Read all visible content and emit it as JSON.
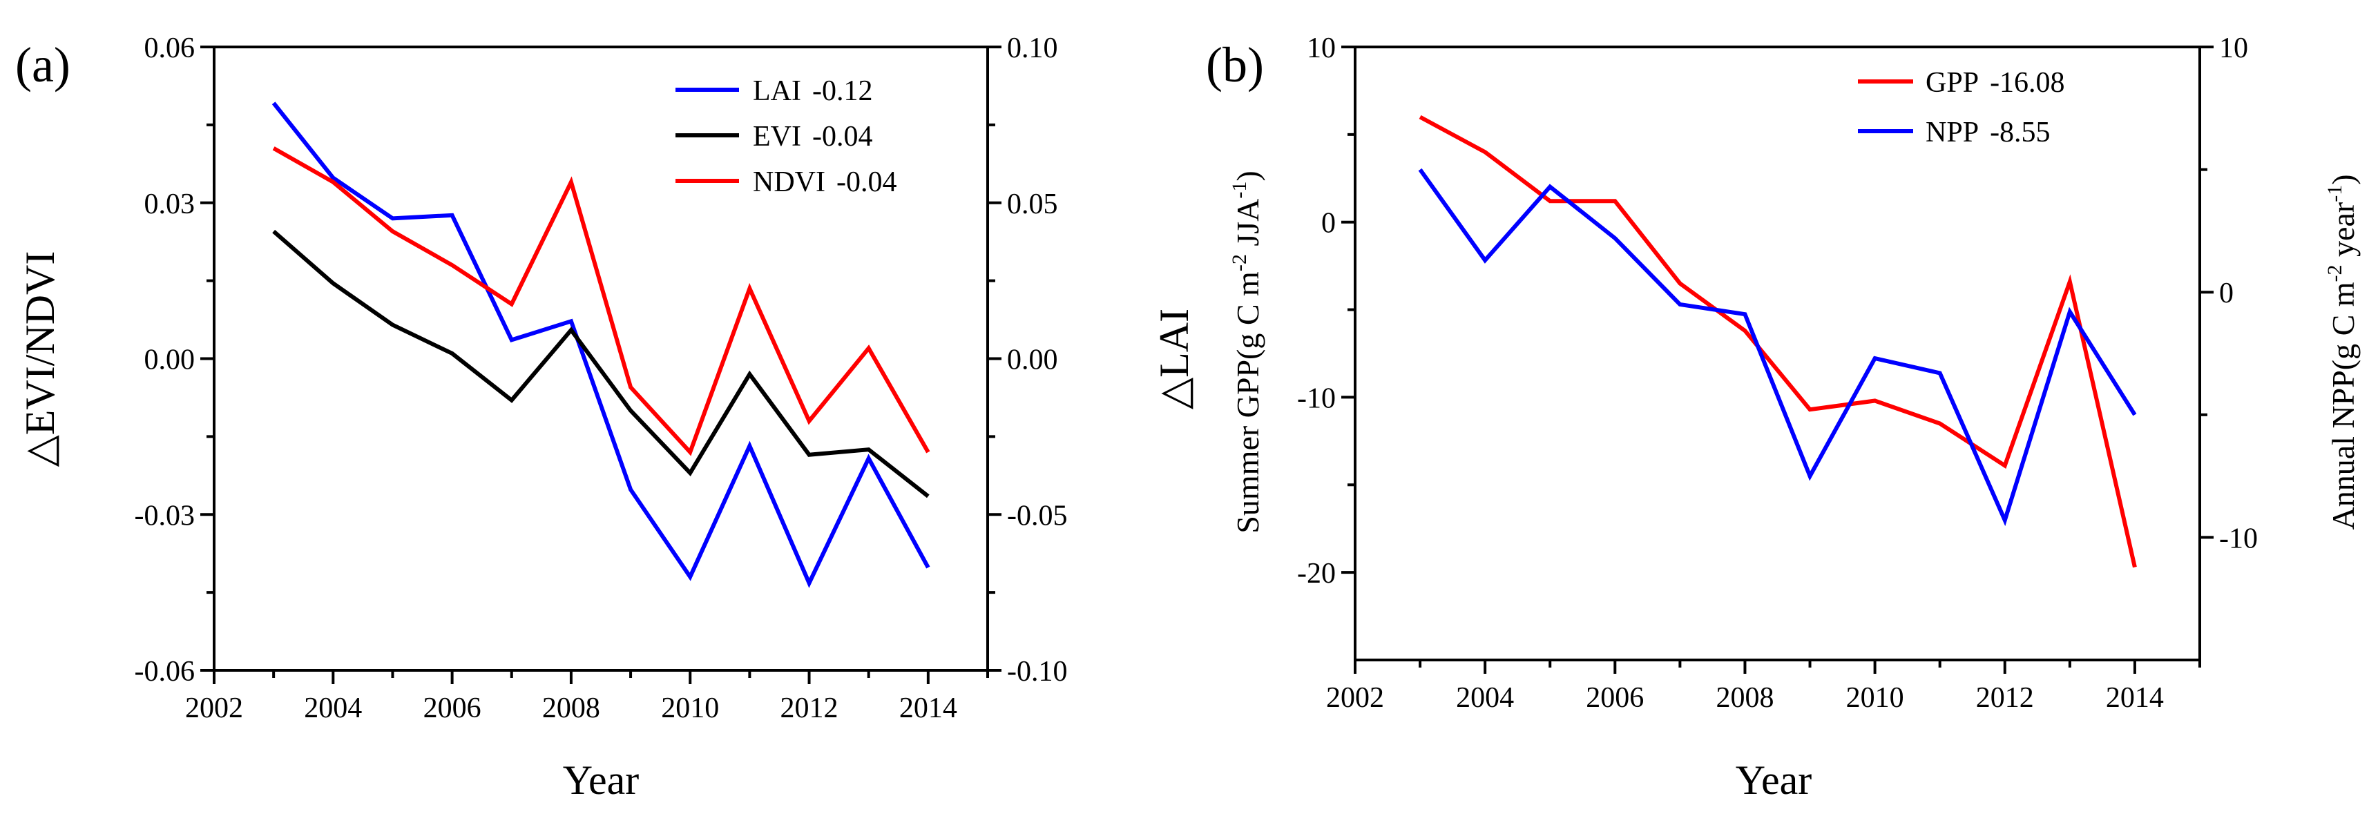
{
  "chart_data": [
    {
      "type": "line",
      "panel_label": "(a)",
      "xlabel": "Year",
      "ylabel": "△EVI/NDVI",
      "y2label": "△LAI",
      "xlim": [
        2002,
        2015
      ],
      "ylim": [
        -0.06,
        0.06
      ],
      "y2lim": [
        -0.1,
        0.1
      ],
      "x_ticks": [
        "2002",
        "2004",
        "2006",
        "2008",
        "2010",
        "2012",
        "2014"
      ],
      "y_ticks": [
        "-0.06",
        "-0.03",
        "0.00",
        "0.03",
        "0.06"
      ],
      "y2_ticks": [
        "-0.10",
        "-0.05",
        "0.00",
        "0.05",
        "0.10"
      ],
      "legend_position": "top-right",
      "x": [
        2003,
        2004,
        2005,
        2006,
        2007,
        2008,
        2009,
        2010,
        2011,
        2012,
        2013,
        2014
      ],
      "series": [
        {
          "name": "LAI",
          "trend": "-0.12",
          "color": "#0000ff",
          "axis": "right",
          "values": [
            0.082,
            0.058,
            0.045,
            0.046,
            0.006,
            0.012,
            -0.042,
            -0.07,
            -0.028,
            -0.072,
            -0.032,
            -0.067
          ]
        },
        {
          "name": "EVI",
          "trend": "-0.04",
          "color": "#000000",
          "axis": "left",
          "values": [
            0.0245,
            0.0145,
            0.0065,
            0.001,
            -0.008,
            0.0055,
            -0.01,
            -0.022,
            -0.003,
            -0.0185,
            -0.0175,
            -0.0265
          ]
        },
        {
          "name": "NDVI",
          "trend": "-0.04",
          "color": "#ff0000",
          "axis": "left",
          "values": [
            0.0405,
            0.034,
            0.0245,
            0.018,
            0.0105,
            0.034,
            -0.0055,
            -0.018,
            0.0135,
            -0.012,
            0.002,
            -0.018
          ]
        }
      ]
    },
    {
      "type": "line",
      "panel_label": "(b)",
      "xlabel": "Year",
      "ylabel": "Summer GPP(g C m",
      "ylabel_sup1": "-2",
      "ylabel_mid": " JJA",
      "ylabel_sup2": "-1",
      "ylabel_end": ")",
      "y2label": "Annual NPP(g C m",
      "y2label_sup1": "-2",
      "y2label_mid": " year",
      "y2label_sup2": "-1",
      "y2label_end": ")",
      "xlim": [
        2002,
        2015
      ],
      "ylim": [
        -25,
        10
      ],
      "y2lim": [
        -15,
        10
      ],
      "x_ticks": [
        "2002",
        "2004",
        "2006",
        "2008",
        "2010",
        "2012",
        "2014"
      ],
      "y_ticks": [
        "-20",
        "-10",
        "0",
        "10"
      ],
      "y2_ticks": [
        "-10",
        "0",
        "10"
      ],
      "legend_position": "top-right",
      "x": [
        2003,
        2004,
        2005,
        2006,
        2007,
        2008,
        2009,
        2010,
        2011,
        2012,
        2013,
        2014
      ],
      "series": [
        {
          "name": "GPP",
          "trend": "-16.08",
          "color": "#ff0000",
          "axis": "left",
          "values": [
            6.0,
            4.0,
            1.2,
            1.2,
            -3.5,
            -6.2,
            -10.7,
            -10.2,
            -11.5,
            -13.9,
            -3.4,
            -19.7
          ]
        },
        {
          "name": "NPP",
          "trend": "-8.55",
          "color": "#0000ff",
          "axis": "right",
          "values": [
            5.0,
            1.3,
            4.3,
            2.2,
            -0.5,
            -0.9,
            -7.5,
            -2.7,
            -3.3,
            -9.3,
            -0.8,
            -5.0
          ]
        }
      ]
    }
  ]
}
